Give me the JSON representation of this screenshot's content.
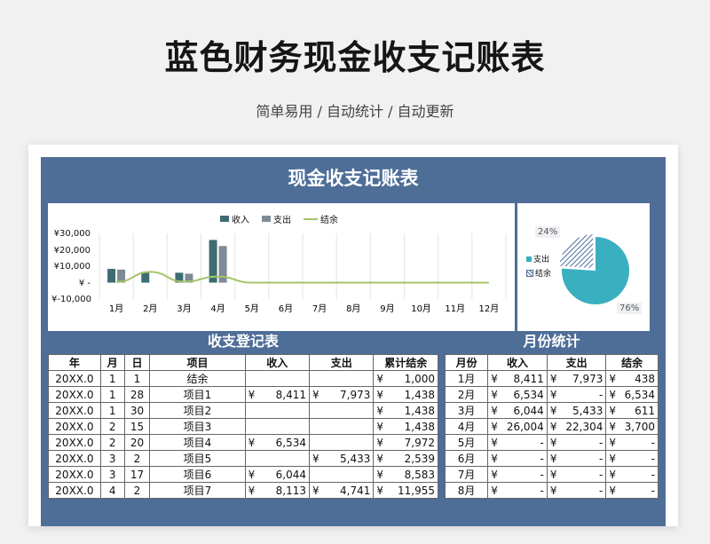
{
  "page": {
    "title": "蓝色财务现金收支记账表",
    "subtitle": "简单易用 / 自动统计 / 自动更新"
  },
  "sheet": {
    "title": "现金收支记账表",
    "ledger_header": "收支登记表",
    "monthly_header": "月份统计"
  },
  "colors": {
    "frame": "#4e6e98",
    "income": "#3f6c72",
    "expense": "#7e8a95",
    "balance": "#a4c46a",
    "pie_expense": "#3aafbf"
  },
  "chart_data": {
    "type": "bar",
    "legend": [
      "收入",
      "支出",
      "结余"
    ],
    "categories": [
      "1月",
      "2月",
      "3月",
      "4月",
      "5月",
      "6月",
      "7月",
      "8月",
      "9月",
      "10月",
      "11月",
      "12月"
    ],
    "y_ticks": [
      "¥30,000",
      "¥20,000",
      "¥10,000",
      "¥ -",
      "¥-10,000"
    ],
    "ylim": [
      -10000,
      30000
    ],
    "series": [
      {
        "name": "收入",
        "type": "bar",
        "values": [
          8411,
          6534,
          6044,
          26004,
          0,
          0,
          0,
          0,
          0,
          0,
          0,
          0
        ]
      },
      {
        "name": "支出",
        "type": "bar",
        "values": [
          7973,
          0,
          5433,
          22304,
          0,
          0,
          0,
          0,
          0,
          0,
          0,
          0
        ]
      },
      {
        "name": "结余",
        "type": "line",
        "values": [
          438,
          6534,
          611,
          3700,
          0,
          0,
          0,
          0,
          0,
          0,
          0,
          0
        ]
      }
    ]
  },
  "pie_data": {
    "type": "pie",
    "legend": [
      "支出",
      "结余"
    ],
    "labels": [
      "24%",
      "76%"
    ],
    "values": [
      24,
      76
    ]
  },
  "ledger": {
    "columns": [
      "年",
      "月",
      "日",
      "项目",
      "收入",
      "支出",
      "累计结余"
    ],
    "rows": [
      {
        "year": "20XX.0",
        "month": "1",
        "day": "1",
        "item": "结余",
        "income": "",
        "expense": "",
        "balance": "1,000"
      },
      {
        "year": "20XX.0",
        "month": "1",
        "day": "28",
        "item": "项目1",
        "income": "8,411",
        "expense": "7,973",
        "balance": "1,438"
      },
      {
        "year": "20XX.0",
        "month": "1",
        "day": "30",
        "item": "项目2",
        "income": "",
        "expense": "",
        "balance": "1,438"
      },
      {
        "year": "20XX.0",
        "month": "2",
        "day": "15",
        "item": "项目3",
        "income": "",
        "expense": "",
        "balance": "1,438"
      },
      {
        "year": "20XX.0",
        "month": "2",
        "day": "20",
        "item": "项目4",
        "income": "6,534",
        "expense": "",
        "balance": "7,972"
      },
      {
        "year": "20XX.0",
        "month": "3",
        "day": "2",
        "item": "项目5",
        "income": "",
        "expense": "5,433",
        "balance": "2,539"
      },
      {
        "year": "20XX.0",
        "month": "3",
        "day": "17",
        "item": "项目6",
        "income": "6,044",
        "expense": "",
        "balance": "8,583"
      },
      {
        "year": "20XX.0",
        "month": "4",
        "day": "2",
        "item": "项目7",
        "income": "8,113",
        "expense": "4,741",
        "balance": "11,955"
      }
    ]
  },
  "monthly": {
    "columns": [
      "月份",
      "收入",
      "支出",
      "结余"
    ],
    "rows": [
      {
        "month": "1月",
        "income": "8,411",
        "expense": "7,973",
        "balance": "438"
      },
      {
        "month": "2月",
        "income": "6,534",
        "expense": "-",
        "balance": "6,534"
      },
      {
        "month": "3月",
        "income": "6,044",
        "expense": "5,433",
        "balance": "611"
      },
      {
        "month": "4月",
        "income": "26,004",
        "expense": "22,304",
        "balance": "3,700"
      },
      {
        "month": "5月",
        "income": "-",
        "expense": "-",
        "balance": "-"
      },
      {
        "month": "6月",
        "income": "-",
        "expense": "-",
        "balance": "-"
      },
      {
        "month": "7月",
        "income": "-",
        "expense": "-",
        "balance": "-"
      },
      {
        "month": "8月",
        "income": "-",
        "expense": "-",
        "balance": "-"
      }
    ]
  },
  "currency": "¥"
}
